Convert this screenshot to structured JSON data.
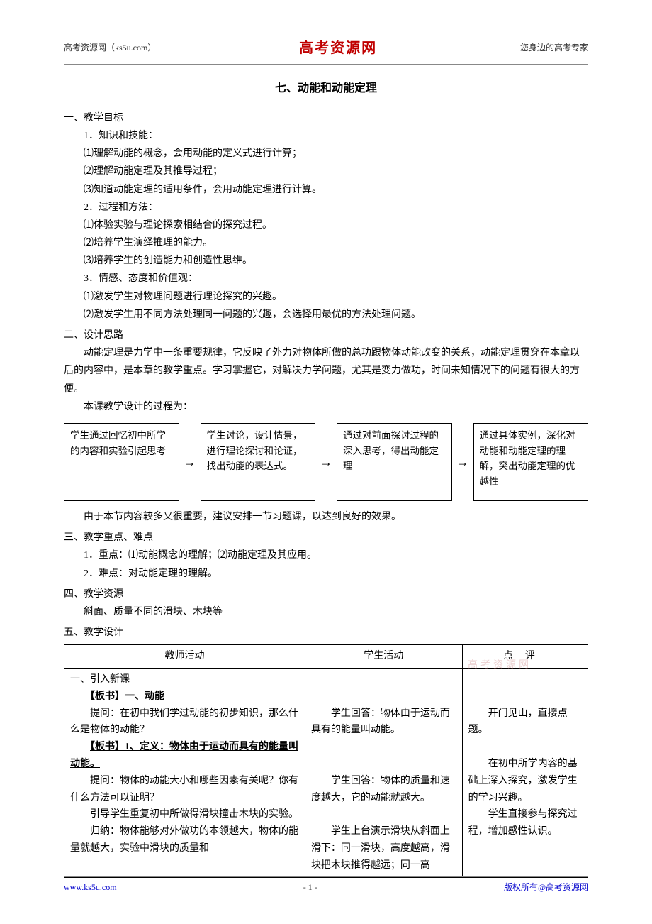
{
  "header": {
    "left": "高考资源网（ks5u.com）",
    "center": "高考资源网",
    "right": "您身边的高考专家"
  },
  "title": "七、动能和动能定理",
  "sec1": {
    "head": "一、教学目标",
    "p1": "1．知识和技能：",
    "p1_1": "⑴理解动能的概念，会用动能的定义式进行计算；",
    "p1_2": "⑵理解动能定理及其推导过程；",
    "p1_3": "⑶知道动能定理的适用条件，会用动能定理进行计算。",
    "p2": "2．过程和方法：",
    "p2_1": "⑴体验实验与理论探索相结合的探究过程。",
    "p2_2": "⑵培养学生演绎推理的能力。",
    "p2_3": "⑶培养学生的创造能力和创造性思维。",
    "p3": "3．情感、态度和价值观：",
    "p3_1": "⑴激发学生对物理问题进行理论探究的兴趣。",
    "p3_2": "⑵激发学生用不同方法处理同一问题的兴趣，会选择用最优的方法处理问题。"
  },
  "sec2": {
    "head": "二、设计思路",
    "para1": "动能定理是力学中一条重要规律，它反映了外力对物体所做的总功跟物体动能改变的关系，动能定理贯穿在本章以后的内容中，是本章的教学重点。学习掌握它，对解决力学问题，尤其是变力做功，时间未知情况下的问题有很大的方便。",
    "para2": "本课教学设计的过程为："
  },
  "flow": {
    "boxes": [
      "学生通过回忆初中所学的内容和实验引起思考",
      "学生讨论，设计情景，进行理论探讨和论证，找出动能的表达式。",
      "通过对前面探讨过程的深入思考，得出动能定理",
      "通过具体实例，深化对动能和动能定理的理解，突出动能定理的优越性"
    ]
  },
  "sec2_after": "由于本节内容较多又很重要，建议安排一节习题课，以达到良好的效果。",
  "sec3": {
    "head": "三、教学重点、难点",
    "p1": "1．重点：⑴动能概念的理解；⑵动能定理及其应用。",
    "p2": "2．难点：对动能定理的理解。"
  },
  "sec4": {
    "head": "四、教学资源",
    "p1": "斜面、质量不同的滑块、木块等"
  },
  "sec5": {
    "head": "五、教学设计"
  },
  "table": {
    "headers": [
      "教师活动",
      "学生活动",
      "点评"
    ],
    "teacher": {
      "l1": "一、引入新课",
      "b1": "【板书】一、动能",
      "l2": "　　提问：在初中我们学过动能的初步知识，那么什么是物体的动能？",
      "b2": "【板书】1、定义：物体由于运动而具有的能量叫动能。",
      "l3": "　　提问：物体的动能大小和哪些因素有关呢？你有什么方法可以证明？",
      "l4": "　　引导学生重复初中所做得滑块撞击木块的实验。",
      "l5": "　　归纳：物体能够对外做功的本领越大，物体的能量就越大，实验中滑块的质量和"
    },
    "student": {
      "s1": "　　学生回答：物体由于运动而具有的能量叫动能。",
      "s2": "　　学生回答：物体的质量和速度越大，它的动能就越大。",
      "s3": "　　学生上台演示滑块从斜面上滑下：同一滑块，高度越高，滑块把木块推得越远；同一高"
    },
    "comment": {
      "c1": "　　开门见山，直接点题。",
      "c2": "　　在初中所学内容的基础上深入探究，激发学生的学习兴趣。",
      "c3": "　　学生直接参与探究过程，增加感性认识。"
    }
  },
  "watermark": "高考资源网",
  "footer": {
    "left": "www.ks5u.com",
    "center": "- 1 -",
    "right": "版权所有@高考资源网"
  }
}
